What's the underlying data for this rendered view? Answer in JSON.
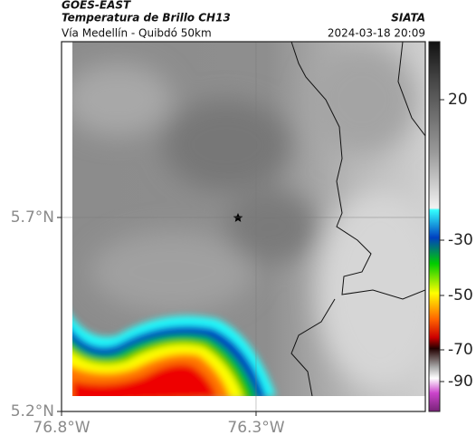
{
  "header": {
    "title": "GOES-EAST",
    "subtitle": "Temperatura de Brillo CH13",
    "source": "SIATA",
    "location": "Vía Medellín - Quibdó 50km",
    "datetime": "2024-03-18 20:09"
  },
  "map": {
    "xlim": [
      -76.8,
      -75.865
    ],
    "ylim": [
      5.2,
      6.153
    ],
    "xticks": [
      {
        "value": -76.8,
        "label": "76.8°W"
      },
      {
        "value": -76.3,
        "label": "76.3°W"
      }
    ],
    "yticks": [
      {
        "value": 5.7,
        "label": "5.7°N"
      },
      {
        "value": 5.2,
        "label": "5.2°N"
      }
    ],
    "grid": true
  },
  "colorbar": {
    "ticks": [
      20,
      -30,
      -50,
      -70,
      -90
    ]
  }
}
